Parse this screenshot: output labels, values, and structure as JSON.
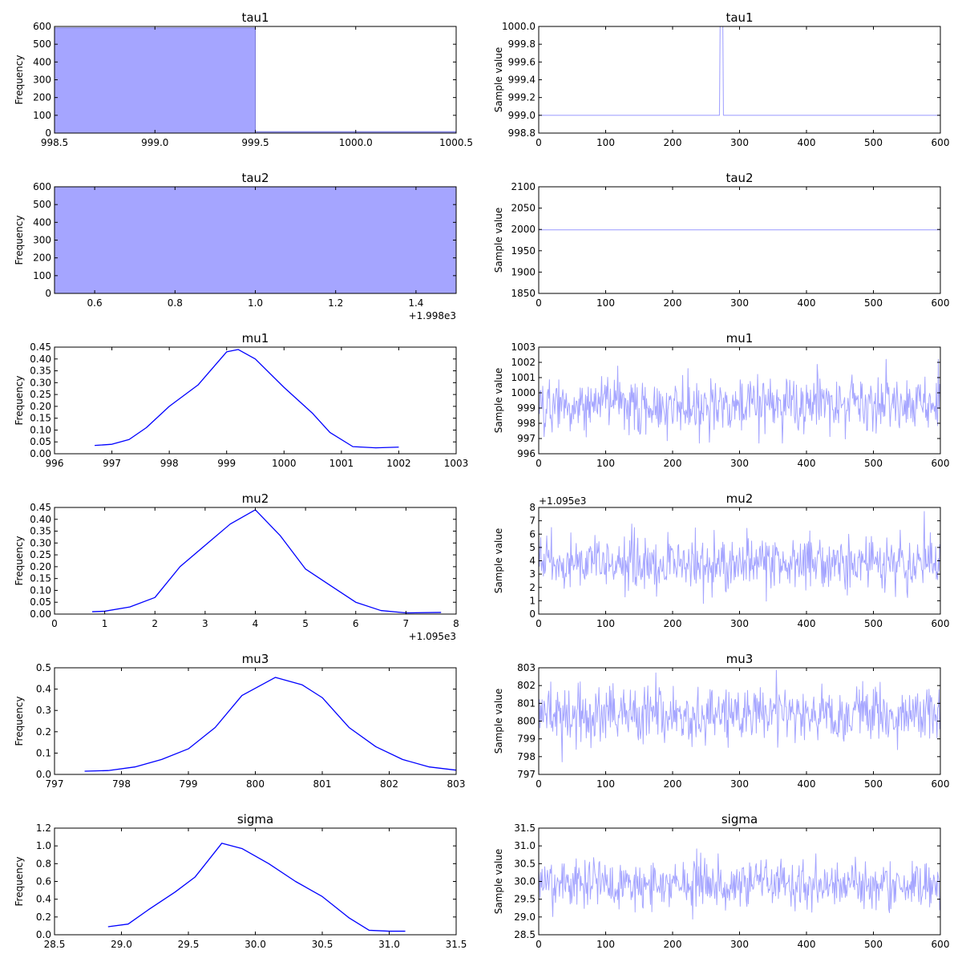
{
  "colors": {
    "kde": "#0000ff",
    "trace": "#a5a5ff",
    "hist_fill": "#a5a5ff",
    "hist_edge": "#7a7ad8"
  },
  "chart_data": [
    {
      "type": "bar",
      "title": "tau1",
      "ylabel": "Frequency",
      "xlabel": "",
      "xlim": [
        998.5,
        1000.5
      ],
      "ylim": [
        0,
        600
      ],
      "xticks": [
        "998.5",
        "999.0",
        "999.5",
        "1000.0",
        "1000.5"
      ],
      "yticks": [
        "0",
        "100",
        "200",
        "300",
        "400",
        "500",
        "600"
      ],
      "offset": "",
      "bins": [
        {
          "x0": 998.5,
          "x1": 999.5,
          "count": 592
        },
        {
          "x0": 999.5,
          "x1": 1000.5,
          "count": 8
        }
      ]
    },
    {
      "type": "line",
      "title": "tau1",
      "ylabel": "Sample value",
      "xlabel": "",
      "xlim": [
        0,
        600
      ],
      "ylim": [
        998.8,
        1000.0
      ],
      "xticks": [
        "0",
        "100",
        "200",
        "300",
        "400",
        "500",
        "600"
      ],
      "yticks": [
        "998.8",
        "999.0",
        "999.2",
        "999.4",
        "999.6",
        "999.8",
        "1000.0"
      ],
      "offset": "",
      "x": [
        0,
        270,
        271,
        272,
        273,
        274,
        275,
        276,
        600
      ],
      "y": [
        999,
        999,
        1000,
        1000,
        1000,
        1000,
        1000,
        999,
        999
      ]
    },
    {
      "type": "bar",
      "title": "tau2",
      "ylabel": "Frequency",
      "xlabel": "",
      "xlim": [
        0.5,
        1.5
      ],
      "ylim": [
        0,
        600
      ],
      "xticks": [
        "0.6",
        "0.8",
        "1.0",
        "1.2",
        "1.4"
      ],
      "yticks": [
        "0",
        "100",
        "200",
        "300",
        "400",
        "500",
        "600"
      ],
      "offset": "+1.998e3",
      "bins": [
        {
          "x0": 0.5,
          "x1": 1.5,
          "count": 600
        }
      ]
    },
    {
      "type": "line",
      "title": "tau2",
      "ylabel": "Sample value",
      "xlabel": "",
      "xlim": [
        0,
        600
      ],
      "ylim": [
        1850,
        2100
      ],
      "xticks": [
        "0",
        "100",
        "200",
        "300",
        "400",
        "500",
        "600"
      ],
      "yticks": [
        "1850",
        "1900",
        "1950",
        "2000",
        "2050",
        "2100"
      ],
      "offset": "",
      "x": [
        0,
        600
      ],
      "y": [
        1999,
        1999
      ]
    },
    {
      "type": "line",
      "title": "mu1",
      "ylabel": "Frequency",
      "xlabel": "",
      "xlim": [
        996,
        1003
      ],
      "ylim": [
        0,
        0.45
      ],
      "xticks": [
        "996",
        "997",
        "998",
        "999",
        "1000",
        "1001",
        "1002",
        "1003"
      ],
      "yticks": [
        "0.00",
        "0.05",
        "0.10",
        "0.15",
        "0.20",
        "0.25",
        "0.30",
        "0.35",
        "0.40",
        "0.45"
      ],
      "offset": "",
      "x": [
        996.7,
        997.0,
        997.3,
        997.6,
        998.0,
        998.5,
        999.0,
        999.2,
        999.5,
        1000.0,
        1000.5,
        1000.8,
        1001.2,
        1001.6,
        1002.0
      ],
      "y": [
        0.035,
        0.04,
        0.06,
        0.11,
        0.2,
        0.29,
        0.43,
        0.44,
        0.4,
        0.28,
        0.17,
        0.09,
        0.03,
        0.025,
        0.028
      ]
    },
    {
      "type": "line",
      "title": "mu1",
      "ylabel": "Sample value",
      "xlabel": "",
      "xlim": [
        0,
        600
      ],
      "ylim": [
        996,
        1003
      ],
      "xticks": [
        "0",
        "100",
        "200",
        "300",
        "400",
        "500",
        "600"
      ],
      "yticks": [
        "996",
        "997",
        "998",
        "999",
        "1000",
        "1001",
        "1002",
        "1003"
      ],
      "offset": "",
      "n": 600,
      "mean": 999.2,
      "sd": 0.9,
      "min": 996.7,
      "max": 1002.2
    },
    {
      "type": "line",
      "title": "mu2",
      "ylabel": "Frequency",
      "xlabel": "",
      "xlim": [
        0,
        8
      ],
      "ylim": [
        0,
        0.45
      ],
      "xticks": [
        "0",
        "1",
        "2",
        "3",
        "4",
        "5",
        "6",
        "7",
        "8"
      ],
      "yticks": [
        "0.00",
        "0.05",
        "0.10",
        "0.15",
        "0.20",
        "0.25",
        "0.30",
        "0.35",
        "0.40",
        "0.45"
      ],
      "offset": "+1.095e3",
      "x": [
        0.75,
        1.0,
        1.5,
        2.0,
        2.5,
        3.0,
        3.5,
        4.0,
        4.5,
        5.0,
        5.5,
        6.0,
        6.5,
        7.0,
        7.7
      ],
      "y": [
        0.01,
        0.012,
        0.03,
        0.07,
        0.2,
        0.29,
        0.38,
        0.44,
        0.33,
        0.19,
        0.12,
        0.05,
        0.015,
        0.005,
        0.007
      ]
    },
    {
      "type": "line",
      "title": "mu2",
      "ylabel": "Sample value",
      "xlabel": "",
      "xlim": [
        0,
        600
      ],
      "ylim": [
        0,
        8
      ],
      "xticks": [
        "0",
        "100",
        "200",
        "300",
        "400",
        "500",
        "600"
      ],
      "yticks": [
        "0",
        "1",
        "2",
        "3",
        "4",
        "5",
        "6",
        "7",
        "8"
      ],
      "offset": "+1.095e3",
      "n": 600,
      "mean": 3.8,
      "sd": 1.0,
      "min": 0.8,
      "max": 7.7
    },
    {
      "type": "line",
      "title": "mu3",
      "ylabel": "Frequency",
      "xlabel": "",
      "xlim": [
        797,
        803
      ],
      "ylim": [
        0,
        0.5
      ],
      "xticks": [
        "797",
        "798",
        "799",
        "800",
        "801",
        "802",
        "803"
      ],
      "yticks": [
        "0.0",
        "0.1",
        "0.2",
        "0.3",
        "0.4",
        "0.5"
      ],
      "offset": "",
      "x": [
        797.45,
        797.8,
        798.2,
        798.6,
        799.0,
        799.4,
        799.8,
        800.3,
        800.7,
        801.0,
        801.4,
        801.8,
        802.2,
        802.6,
        803.0
      ],
      "y": [
        0.015,
        0.018,
        0.035,
        0.07,
        0.12,
        0.22,
        0.37,
        0.455,
        0.42,
        0.36,
        0.22,
        0.13,
        0.07,
        0.035,
        0.02
      ]
    },
    {
      "type": "line",
      "title": "mu3",
      "ylabel": "Sample value",
      "xlabel": "",
      "xlim": [
        0,
        600
      ],
      "ylim": [
        797,
        803
      ],
      "xticks": [
        "0",
        "100",
        "200",
        "300",
        "400",
        "500",
        "600"
      ],
      "yticks": [
        "797",
        "798",
        "799",
        "800",
        "801",
        "802",
        "803"
      ],
      "offset": "",
      "n": 600,
      "mean": 800.4,
      "sd": 0.8,
      "min": 797.5,
      "max": 802.9
    },
    {
      "type": "line",
      "title": "sigma",
      "ylabel": "Frequency",
      "xlabel": "",
      "xlim": [
        28.5,
        31.5
      ],
      "ylim": [
        0,
        1.2
      ],
      "xticks": [
        "28.5",
        "29.0",
        "29.5",
        "30.0",
        "30.5",
        "31.0",
        "31.5"
      ],
      "yticks": [
        "0.0",
        "0.2",
        "0.4",
        "0.6",
        "0.8",
        "1.0",
        "1.2"
      ],
      "offset": "",
      "x": [
        28.9,
        29.05,
        29.2,
        29.4,
        29.55,
        29.75,
        29.9,
        30.1,
        30.3,
        30.5,
        30.7,
        30.85,
        31.0,
        31.12
      ],
      "y": [
        0.09,
        0.12,
        0.28,
        0.48,
        0.65,
        1.03,
        0.97,
        0.8,
        0.6,
        0.43,
        0.19,
        0.05,
        0.04,
        0.04
      ]
    },
    {
      "type": "line",
      "title": "sigma",
      "ylabel": "Sample value",
      "xlabel": "",
      "xlim": [
        0,
        600
      ],
      "ylim": [
        28.5,
        31.5
      ],
      "xticks": [
        "0",
        "100",
        "200",
        "300",
        "400",
        "500",
        "600"
      ],
      "yticks": [
        "28.5",
        "29.0",
        "29.5",
        "30.0",
        "30.5",
        "31.0",
        "31.5"
      ],
      "offset": "",
      "n": 600,
      "mean": 29.9,
      "sd": 0.35,
      "min": 28.9,
      "max": 31.1
    }
  ]
}
